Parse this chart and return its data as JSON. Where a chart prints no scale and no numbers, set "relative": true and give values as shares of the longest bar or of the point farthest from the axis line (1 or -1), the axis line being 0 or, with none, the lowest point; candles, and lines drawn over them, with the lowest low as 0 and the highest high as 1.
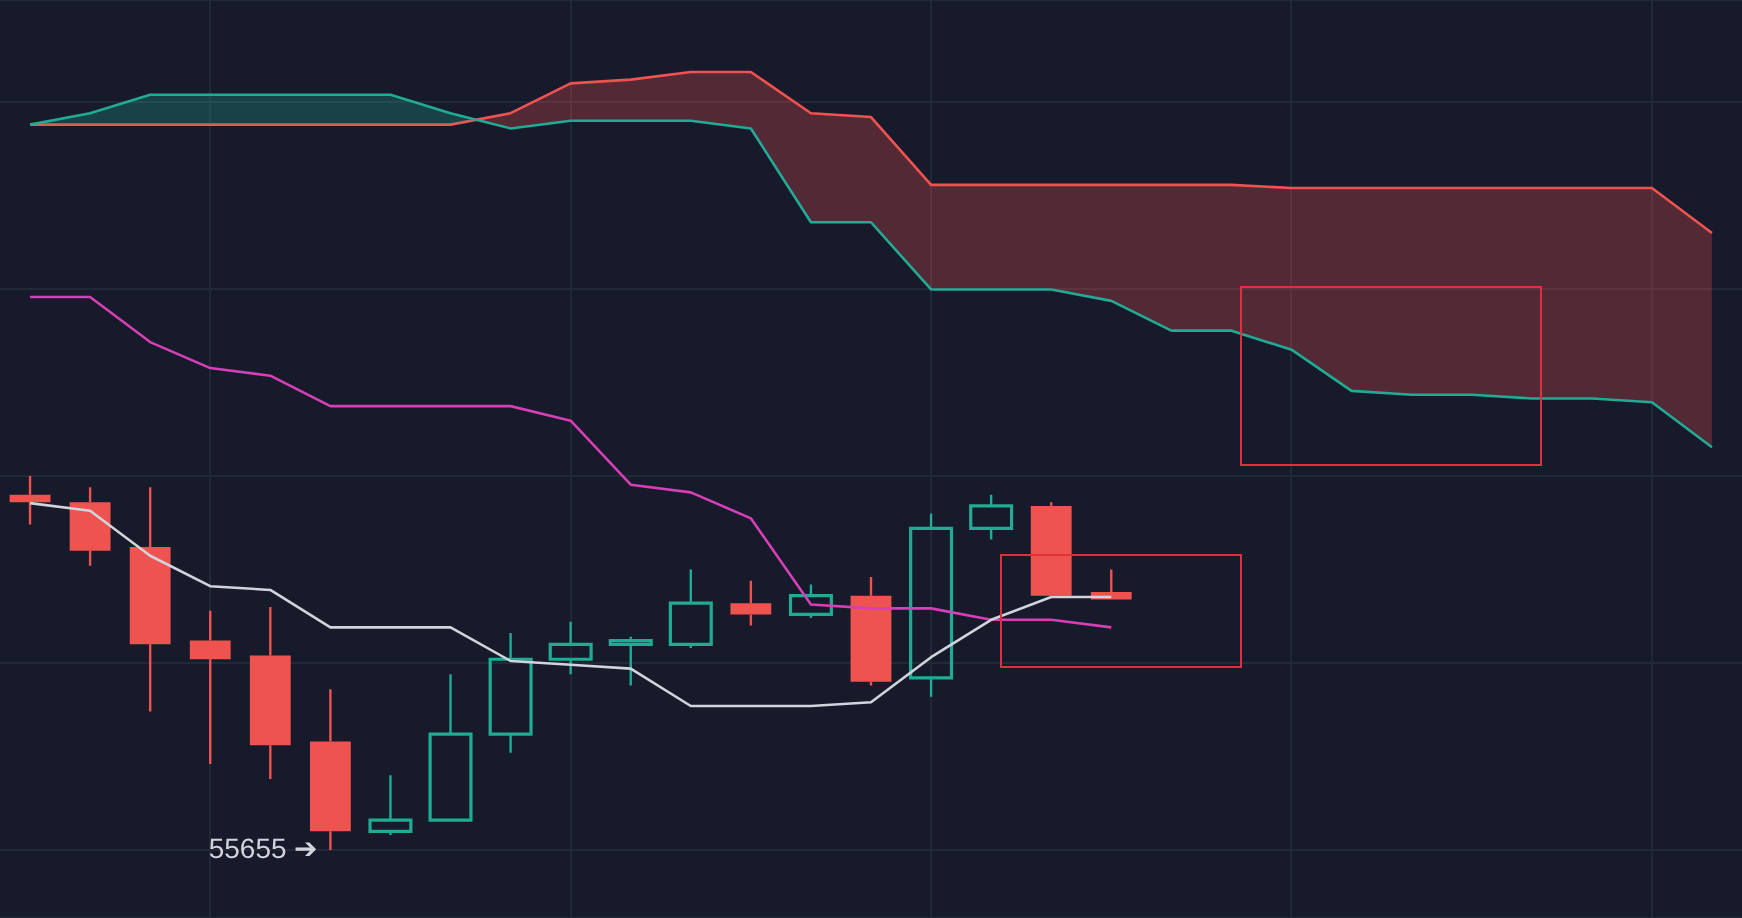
{
  "chart_data": [
    {
      "type": "candlestick",
      "relative": true,
      "grid": true,
      "categories": [
        null,
        null,
        null,
        null,
        null,
        null,
        null,
        null,
        null,
        null,
        null,
        null,
        null,
        null,
        null,
        null,
        null,
        null,
        null,
        null,
        null,
        null,
        null,
        null,
        null,
        null,
        null,
        null,
        null
      ],
      "ohlc": [
        [
          0.95,
          1.0,
          0.87,
          0.93
        ],
        [
          0.93,
          0.97,
          0.76,
          0.8
        ],
        [
          0.81,
          0.97,
          0.37,
          0.55
        ],
        [
          0.56,
          0.64,
          0.23,
          0.51
        ],
        [
          0.52,
          0.65,
          0.19,
          0.28
        ],
        [
          0.29,
          0.43,
          0.0,
          0.05
        ],
        [
          0.05,
          0.2,
          0.04,
          0.08
        ],
        [
          0.08,
          0.47,
          0.08,
          0.31
        ],
        [
          0.31,
          0.58,
          0.26,
          0.51
        ],
        [
          0.51,
          0.61,
          0.47,
          0.55
        ],
        [
          0.55,
          0.57,
          0.44,
          0.56
        ],
        [
          0.55,
          0.75,
          0.54,
          0.66
        ],
        [
          0.66,
          0.72,
          0.6,
          0.63
        ],
        [
          0.63,
          0.71,
          0.62,
          0.68
        ],
        [
          0.68,
          0.73,
          0.44,
          0.45
        ],
        [
          0.46,
          0.9,
          0.41,
          0.86
        ],
        [
          0.86,
          0.95,
          0.83,
          0.92
        ],
        [
          0.92,
          0.93,
          0.68,
          0.68
        ],
        [
          0.69,
          0.75,
          0.67,
          0.67
        ],
        null,
        null,
        null,
        null,
        null,
        null,
        null,
        null,
        null,
        null
      ],
      "colors": [
        "#ef5350",
        "#ef5350",
        "#ef5350",
        "#ef5350",
        "#ef5350",
        "#ef5350",
        "#22ab94",
        "#22ab94",
        "#22ab94",
        "#22ab94",
        "#22ab94",
        "#22ab94",
        "#ef5350",
        "#22ab94",
        "#ef5350",
        "#22ab94",
        "#22ab94",
        "#ef5350",
        "#ef5350",
        null,
        null,
        null,
        null,
        null,
        null,
        null,
        null,
        null,
        null
      ],
      "annotations": [
        "55655 ➔"
      ]
    },
    {
      "type": "line",
      "relative": true,
      "categories": [
        null,
        null,
        null,
        null,
        null,
        null,
        null,
        null,
        null,
        null,
        null,
        null,
        null,
        null,
        null,
        null,
        null,
        null,
        null,
        null,
        null,
        null,
        null,
        null,
        null,
        null,
        null,
        null,
        null
      ],
      "series": [
        {
          "color": "#d1d4dc",
          "values": [
            0.32,
            0.308,
            0.237,
            0.189,
            0.183,
            0.124,
            0.124,
            0.124,
            0.071,
            0.065,
            0.059,
            0,
            0,
            0,
            0.006,
            0.077,
            0.136,
            0.172,
            0.172,
            null,
            null,
            null,
            null,
            null,
            null,
            null,
            null,
            null,
            null
          ]
        },
        {
          "color": "#d63fb5",
          "values": [
            0.645,
            0.645,
            0.574,
            0.533,
            0.521,
            0.473,
            0.473,
            0.473,
            0.473,
            0.45,
            0.349,
            0.337,
            0.296,
            0.16,
            0.154,
            0.154,
            0.136,
            0.136,
            0.124,
            null,
            null,
            null,
            null,
            null,
            null,
            null,
            null,
            null,
            null
          ]
        },
        {
          "color": "#22ab94",
          "values": [
            0.917,
            0.935,
            0.964,
            0.964,
            0.964,
            0.964,
            0.964,
            0.935,
            0.911,
            0.923,
            0.923,
            0.923,
            0.911,
            0.763,
            0.763,
            0.657,
            0.657,
            0.657,
            0.639,
            0.592,
            0.592,
            0.562,
            0.497,
            0.491,
            0.491,
            0.485,
            0.485,
            0.479,
            0.408
          ]
        },
        {
          "color": "#f05350",
          "values": [
            0.917,
            0.917,
            0.917,
            0.917,
            0.917,
            0.917,
            0.917,
            0.917,
            0.935,
            0.982,
            0.988,
            1,
            1,
            0.935,
            0.929,
            0.822,
            0.822,
            0.822,
            0.822,
            0.822,
            0.822,
            0.817,
            0.817,
            0.817,
            0.817,
            0.817,
            0.817,
            0.817,
            0.746
          ],
          "lower": [
            0.917,
            0.935,
            0.964,
            0.964,
            0.964,
            0.964,
            0.964,
            0.935,
            0.911,
            0.923,
            0.923,
            0.923,
            0.911,
            0.763,
            0.763,
            0.657,
            0.657,
            0.657,
            0.639,
            0.592,
            0.592,
            0.562,
            0.497,
            0.491,
            0.491,
            0.485,
            0.485,
            0.479,
            0.408
          ],
          "upper": [
            0.917,
            0.917,
            0.917,
            0.917,
            0.917,
            0.917,
            0.917,
            0.917,
            0.935,
            0.982,
            0.988,
            1,
            1,
            0.935,
            0.929,
            0.822,
            0.822,
            0.822,
            0.822,
            0.822,
            0.822,
            0.817,
            0.817,
            0.817,
            0.817,
            0.817,
            0.817,
            0.817,
            0.746
          ]
        }
      ]
    }
  ]
}
